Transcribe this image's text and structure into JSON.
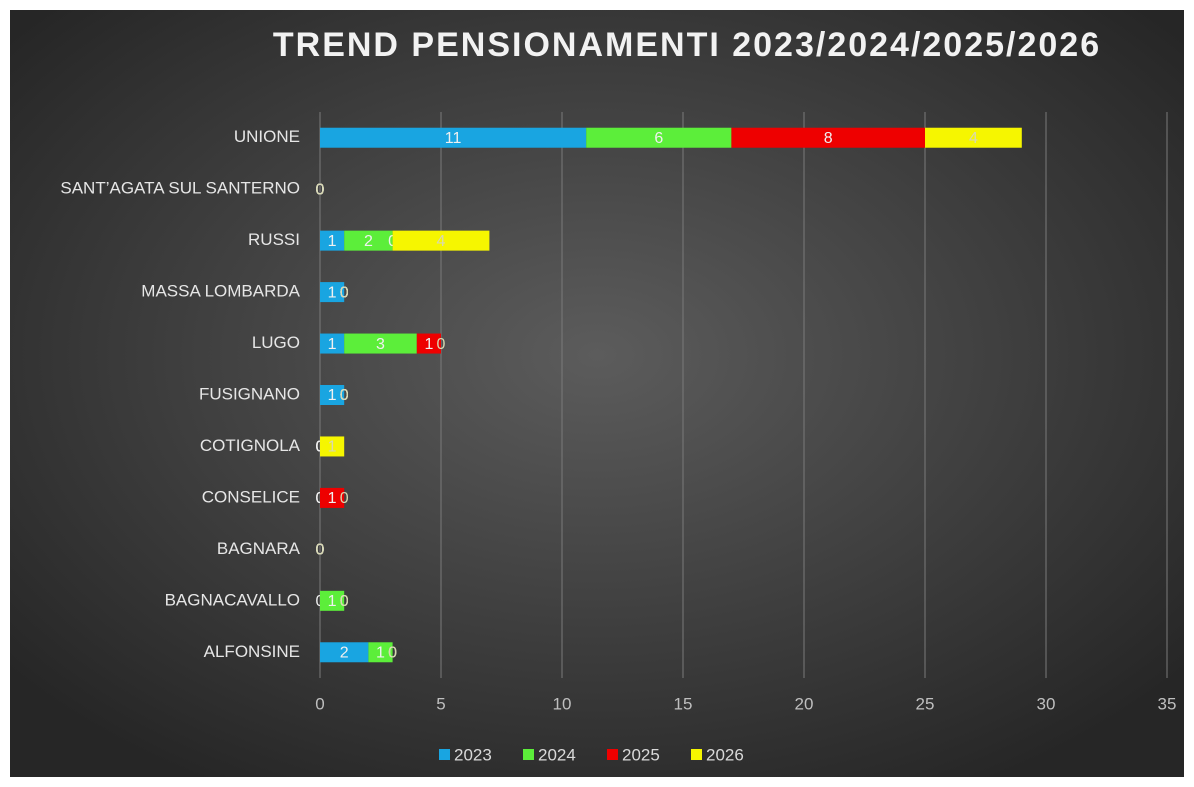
{
  "chart_data": {
    "type": "stacked_barh",
    "title": "TREND PENSIONAMENTI 2023/2024/2025/2026",
    "categories": [
      "UNIONE",
      "SANT’AGATA SUL SANTERNO",
      "RUSSI",
      "MASSA LOMBARDA",
      "LUGO",
      "FUSIGNANO",
      "COTIGNOLA",
      "CONSELICE",
      "BAGNARA",
      "BAGNACAVALLO",
      "ALFONSINE"
    ],
    "series": [
      {
        "name": "2023",
        "color": "#19a5e1",
        "values": [
          11,
          0,
          1,
          1,
          1,
          1,
          0,
          0,
          0,
          0,
          2
        ]
      },
      {
        "name": "2024",
        "color": "#5cee3a",
        "values": [
          6,
          0,
          2,
          0,
          3,
          0,
          0,
          0,
          0,
          1,
          1
        ]
      },
      {
        "name": "2025",
        "color": "#ee0000",
        "values": [
          8,
          0,
          0,
          0,
          1,
          0,
          0,
          1,
          0,
          0,
          0
        ]
      },
      {
        "name": "2026",
        "color": "#f6f600",
        "values": [
          4,
          0,
          4,
          0,
          0,
          0,
          1,
          0,
          0,
          0,
          0
        ]
      }
    ],
    "xlim": [
      0,
      35
    ],
    "xticks": [
      0,
      5,
      10,
      15,
      20,
      25,
      30,
      35
    ],
    "grid": true,
    "legend": "bottom"
  }
}
